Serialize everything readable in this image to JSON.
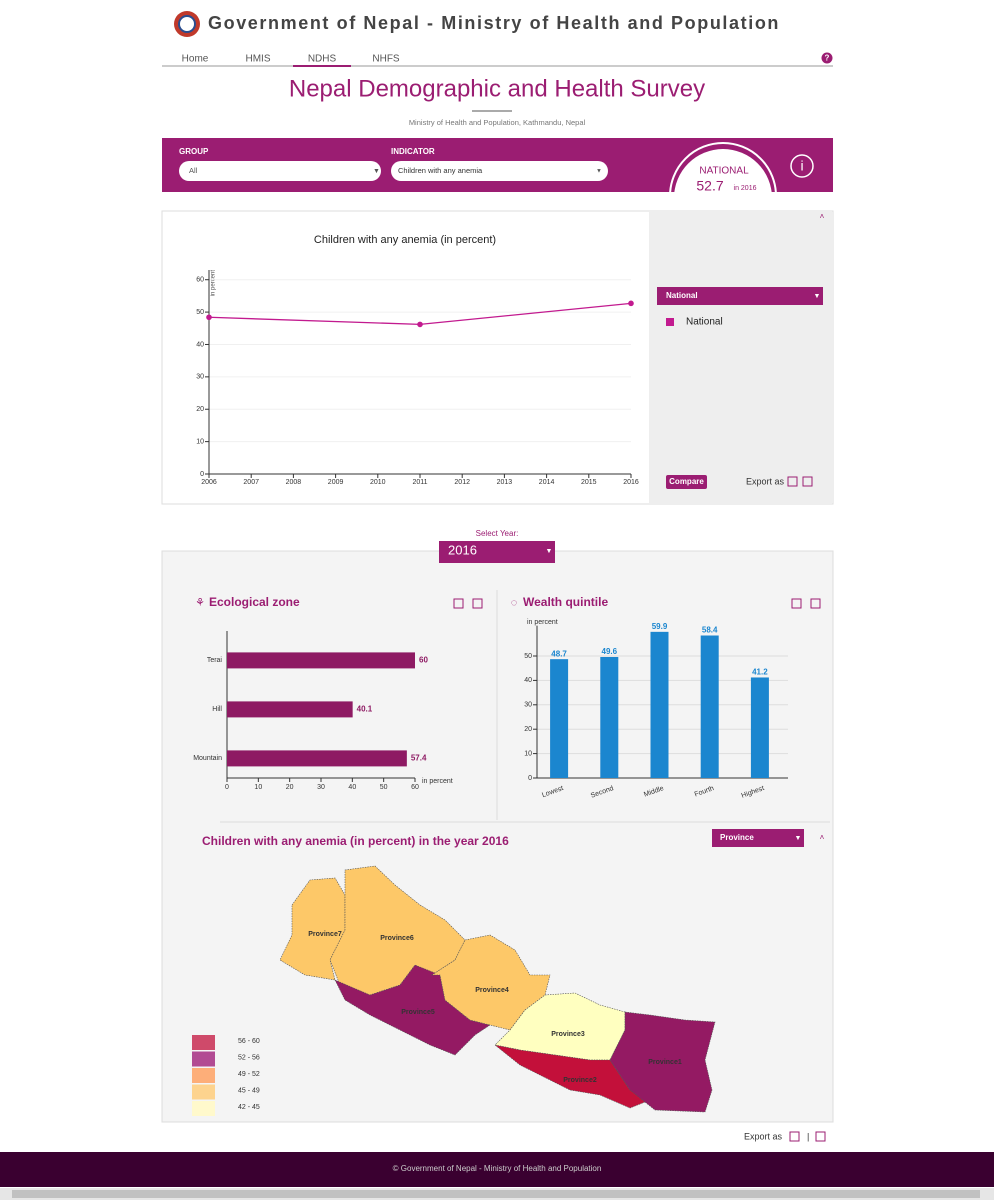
{
  "header": {
    "title": "Government of Nepal - Ministry of Health and Population"
  },
  "nav": [
    "Home",
    "HMIS",
    "NDHS",
    "NHFS"
  ],
  "page": {
    "title": "Nepal Demographic and Health Survey",
    "subtitle": "Ministry of Health and Population, Kathmandu, Nepal"
  },
  "filters": {
    "group_label": "GROUP",
    "group_value": "All",
    "indicator_label": "INDICATOR",
    "indicator_value": "Children with any anemia"
  },
  "national": {
    "label": "NATIONAL",
    "value": 52.7,
    "year_text": "in 2016"
  },
  "compare_panel": {
    "select": "National",
    "button": "Compare",
    "export": "Export as"
  },
  "year_select": {
    "label": "Select Year:",
    "value": "2016"
  },
  "chart_data": [
    {
      "type": "line",
      "title": "Children with any anemia (in percent)",
      "y_label": "in percent",
      "x": [
        2006,
        2011,
        2016
      ],
      "series": [
        {
          "name": "National",
          "color": "#c21a8f",
          "values": [
            48.4,
            46.2,
            52.7
          ]
        }
      ],
      "xlim": [
        2006,
        2016
      ],
      "xticks": [
        2006,
        2007,
        2008,
        2009,
        2010,
        2011,
        2012,
        2013,
        2014,
        2015,
        2016
      ],
      "ylim": [
        0,
        63
      ],
      "yticks": [
        0,
        10,
        20,
        30,
        40,
        50,
        60
      ],
      "grid": true
    },
    {
      "type": "hbar",
      "title": "Ecological zone",
      "x_label": "in percent",
      "categories": [
        "Terai",
        "Hill",
        "Mountain"
      ],
      "values": [
        60,
        40.1,
        57.4
      ],
      "color": "#8e1a63",
      "xlim": [
        0,
        60
      ],
      "xticks": [
        0,
        10,
        20,
        30,
        40,
        50,
        60
      ]
    },
    {
      "type": "bar",
      "title": "Wealth quintile",
      "y_label": "in percent",
      "categories": [
        "Lowest",
        "Second",
        "Middle",
        "Fourth",
        "Highest"
      ],
      "values": [
        48.7,
        49.6,
        59.9,
        58.4,
        41.2
      ],
      "color": "#1b86cf",
      "ylim": [
        0,
        60
      ],
      "yticks": [
        0,
        10,
        20,
        30,
        40,
        50
      ],
      "grid": true
    }
  ],
  "map": {
    "title": "Children with any anemia (in percent) in the year 2016",
    "level_select": "Province",
    "regions": [
      {
        "name": "Province7",
        "color": "#fdc868"
      },
      {
        "name": "Province6",
        "color": "#fdc868"
      },
      {
        "name": "Province5",
        "color": "#941a63"
      },
      {
        "name": "Province4",
        "color": "#fdc868"
      },
      {
        "name": "Province3",
        "color": "#ffffc0"
      },
      {
        "name": "Province2",
        "color": "#c3103a"
      },
      {
        "name": "Province1",
        "color": "#941a63"
      }
    ],
    "legend": [
      {
        "label": "56 - 60",
        "color": "#cf4a6a"
      },
      {
        "label": "52 - 56",
        "color": "#b24b93"
      },
      {
        "label": "49 - 52",
        "color": "#fdae79"
      },
      {
        "label": "45 - 49",
        "color": "#fdd38e"
      },
      {
        "label": "42 - 45",
        "color": "#fff9cc"
      }
    ],
    "export": "Export as"
  },
  "footer": "© Government of Nepal - Ministry of Health and Population"
}
